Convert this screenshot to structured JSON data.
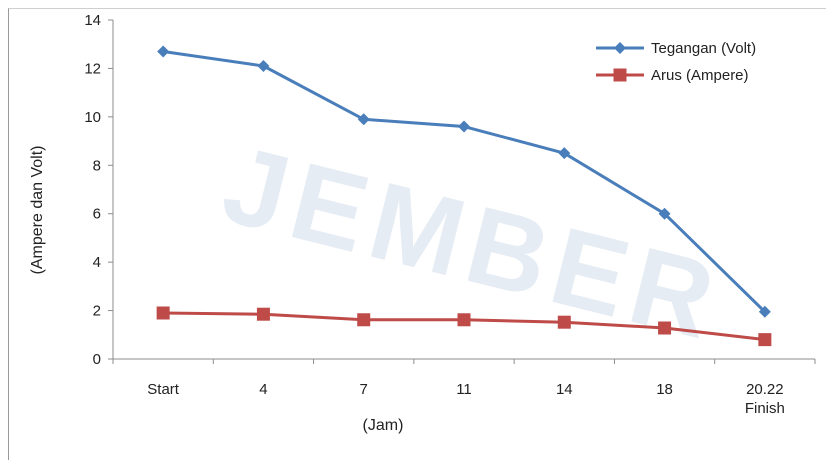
{
  "chart_data": {
    "type": "line",
    "categories": [
      "Start",
      "4",
      "7",
      "11",
      "14",
      "18",
      "20.22|Finish"
    ],
    "series": [
      {
        "name": "Tegangan (Volt)",
        "values": [
          12.7,
          12.1,
          9.9,
          9.6,
          8.5,
          6.0,
          1.95
        ],
        "color": "#4a7ebb",
        "marker": "diamond"
      },
      {
        "name": "Arus (Ampere)",
        "values": [
          1.9,
          1.85,
          1.62,
          1.62,
          1.52,
          1.28,
          0.8
        ],
        "color": "#be4b48",
        "marker": "square"
      }
    ],
    "xlabel": "(Jam)",
    "ylabel": "(Ampere  dan  Volt)",
    "ylim": [
      0,
      14
    ],
    "yticks": [
      0,
      2,
      4,
      6,
      8,
      10,
      12,
      14
    ],
    "grid": false,
    "legend": "top-right"
  },
  "watermark": "JEMBER"
}
